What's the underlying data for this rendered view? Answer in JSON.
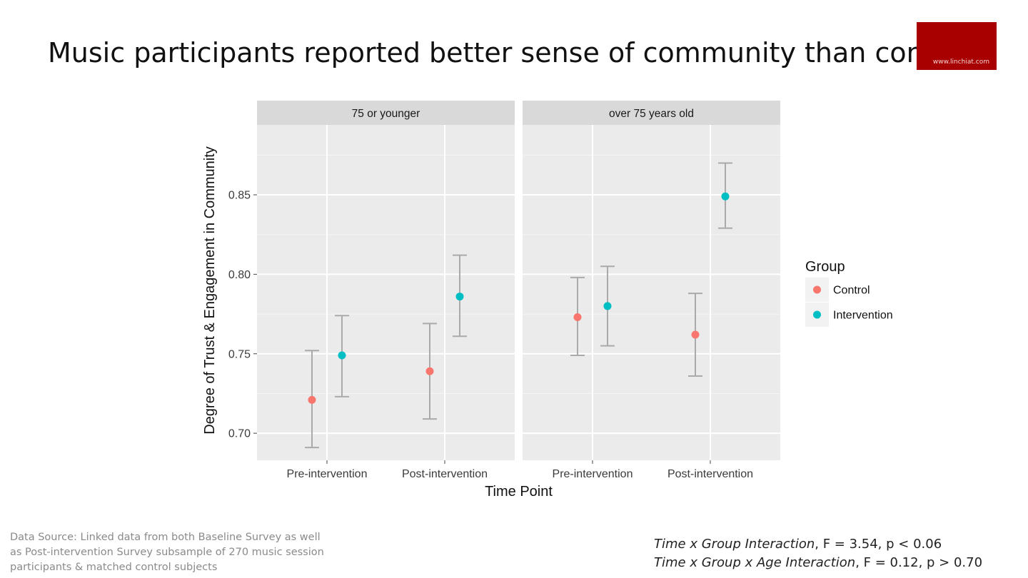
{
  "slide": {
    "title": "Music participants reported better sense of community than controls",
    "logo_text": "www.linchiat.com",
    "source_note": "Data Source: Linked data from both Baseline Survey as well as Post-intervention Survey subsample of 270 music session participants & matched control subjects",
    "stats": [
      {
        "label": "Time x Group Interaction",
        "rest": ", F = 3.54, p < 0.06"
      },
      {
        "label": "Time x Group x Age Interaction",
        "rest": ", F = 0.12, p > 0.70"
      }
    ],
    "colors": {
      "brand": "#a80000",
      "control": "#f8766d",
      "intervention": "#00bfc4"
    }
  },
  "chart_data": {
    "type": "scatter",
    "subtype": "point-with-errorbars, faceted",
    "xlabel": "Time Point",
    "ylabel": "Degree of Trust & Engagement in Community",
    "ylim": [
      0.683,
      0.894
    ],
    "yticks": [
      0.7,
      0.75,
      0.8,
      0.85
    ],
    "ytick_labels": [
      "0.70",
      "0.75",
      "0.80",
      "0.85"
    ],
    "categories": [
      "Pre-intervention",
      "Post-intervention"
    ],
    "legend": {
      "title": "Group",
      "position": "right",
      "entries": [
        {
          "name": "Control",
          "color": "#f8766d"
        },
        {
          "name": "Intervention",
          "color": "#00bfc4"
        }
      ]
    },
    "facets": [
      {
        "label": "75 or younger",
        "series": [
          {
            "name": "Control",
            "values": [
              0.721,
              0.739
            ],
            "lower": [
              0.691,
              0.709
            ],
            "upper": [
              0.752,
              0.769
            ]
          },
          {
            "name": "Intervention",
            "values": [
              0.749,
              0.786
            ],
            "lower": [
              0.723,
              0.761
            ],
            "upper": [
              0.774,
              0.812
            ]
          }
        ]
      },
      {
        "label": "over 75 years old",
        "series": [
          {
            "name": "Control",
            "values": [
              0.773,
              0.762
            ],
            "lower": [
              0.749,
              0.736
            ],
            "upper": [
              0.798,
              0.788
            ]
          },
          {
            "name": "Intervention",
            "values": [
              0.78,
              0.849
            ],
            "lower": [
              0.755,
              0.829
            ],
            "upper": [
              0.805,
              0.87
            ]
          }
        ]
      }
    ]
  }
}
